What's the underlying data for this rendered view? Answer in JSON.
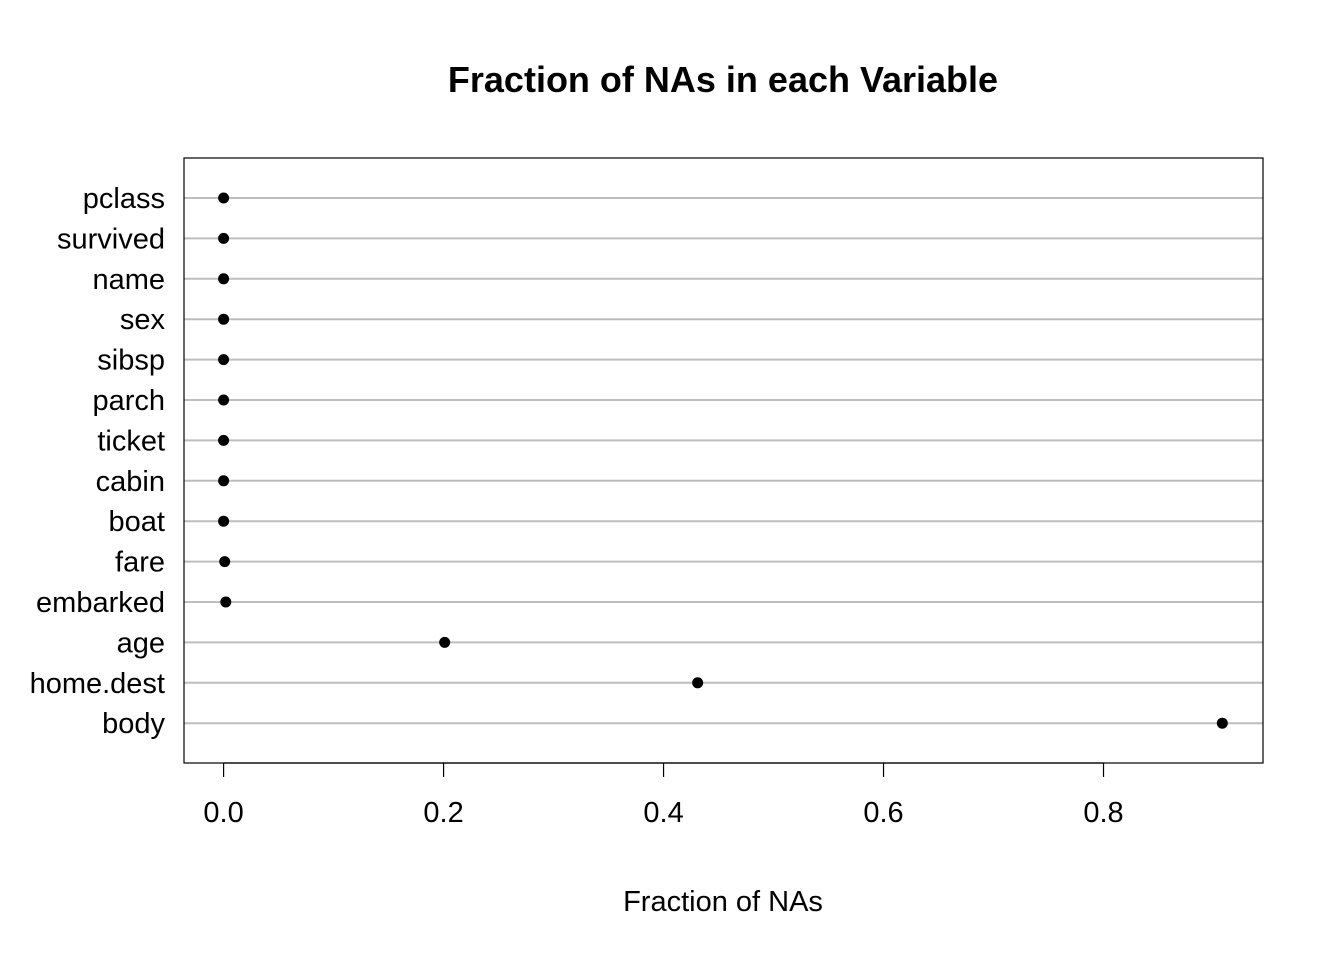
{
  "chart_data": {
    "type": "scatter",
    "title": "Fraction of NAs in each Variable",
    "xlabel": "Fraction of NAs",
    "ylabel": "",
    "xlim": [
      -0.036,
      0.945
    ],
    "x_ticks": [
      0.0,
      0.2,
      0.4,
      0.6,
      0.8
    ],
    "x_tick_labels": [
      "0.0",
      "0.2",
      "0.4",
      "0.6",
      "0.8"
    ],
    "grid": "horizontal",
    "colors": {
      "points": "#000000",
      "gridlines": "#bebebe",
      "frame": "#000000"
    },
    "categories": [
      "pclass",
      "survived",
      "name",
      "sex",
      "sibsp",
      "parch",
      "ticket",
      "cabin",
      "boat",
      "fare",
      "embarked",
      "age",
      "home.dest",
      "body"
    ],
    "values": [
      0.0,
      0.0,
      0.0,
      0.0,
      0.0,
      0.0,
      0.0,
      0.0,
      0.0,
      0.001,
      0.002,
      0.201,
      0.431,
      0.908
    ]
  }
}
